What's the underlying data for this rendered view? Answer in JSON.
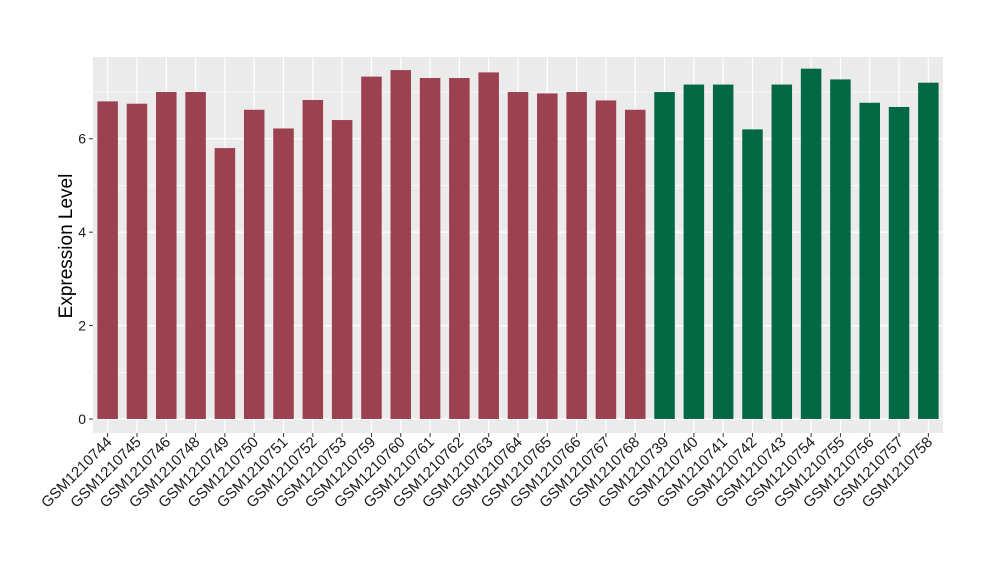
{
  "chart_data": {
    "type": "bar",
    "title": "",
    "xlabel": "",
    "ylabel": "Expression Level",
    "ylim": [
      -0.3,
      7.75
    ],
    "y_ticks": [
      0,
      2,
      4,
      6
    ],
    "grid": true,
    "categories": [
      "GSM1210744",
      "GSM1210745",
      "GSM1210746",
      "GSM1210748",
      "GSM1210749",
      "GSM1210750",
      "GSM1210751",
      "GSM1210752",
      "GSM1210753",
      "GSM1210759",
      "GSM1210760",
      "GSM1210761",
      "GSM1210762",
      "GSM1210763",
      "GSM1210764",
      "GSM1210765",
      "GSM1210766",
      "GSM1210767",
      "GSM1210768",
      "GSM1210739",
      "GSM1210740",
      "GSM1210741",
      "GSM1210742",
      "GSM1210743",
      "GSM1210754",
      "GSM1210755",
      "GSM1210756",
      "GSM1210757",
      "GSM1210758"
    ],
    "values": [
      6.8,
      6.75,
      7.0,
      7.0,
      5.8,
      6.62,
      6.22,
      6.83,
      6.4,
      7.33,
      7.47,
      7.3,
      7.3,
      7.42,
      7.0,
      6.97,
      7.0,
      6.82,
      6.62,
      7.0,
      7.16,
      7.16,
      6.2,
      7.16,
      7.5,
      7.27,
      6.77,
      6.68,
      7.2
    ],
    "groups": [
      0,
      0,
      0,
      0,
      0,
      0,
      0,
      0,
      0,
      0,
      0,
      0,
      0,
      0,
      0,
      0,
      0,
      0,
      0,
      1,
      1,
      1,
      1,
      1,
      1,
      1,
      1,
      1,
      1
    ],
    "group_colors": [
      "#9b4150",
      "#036944"
    ],
    "panel_background": "#ebebeb",
    "grid_color": "#ffffff"
  }
}
